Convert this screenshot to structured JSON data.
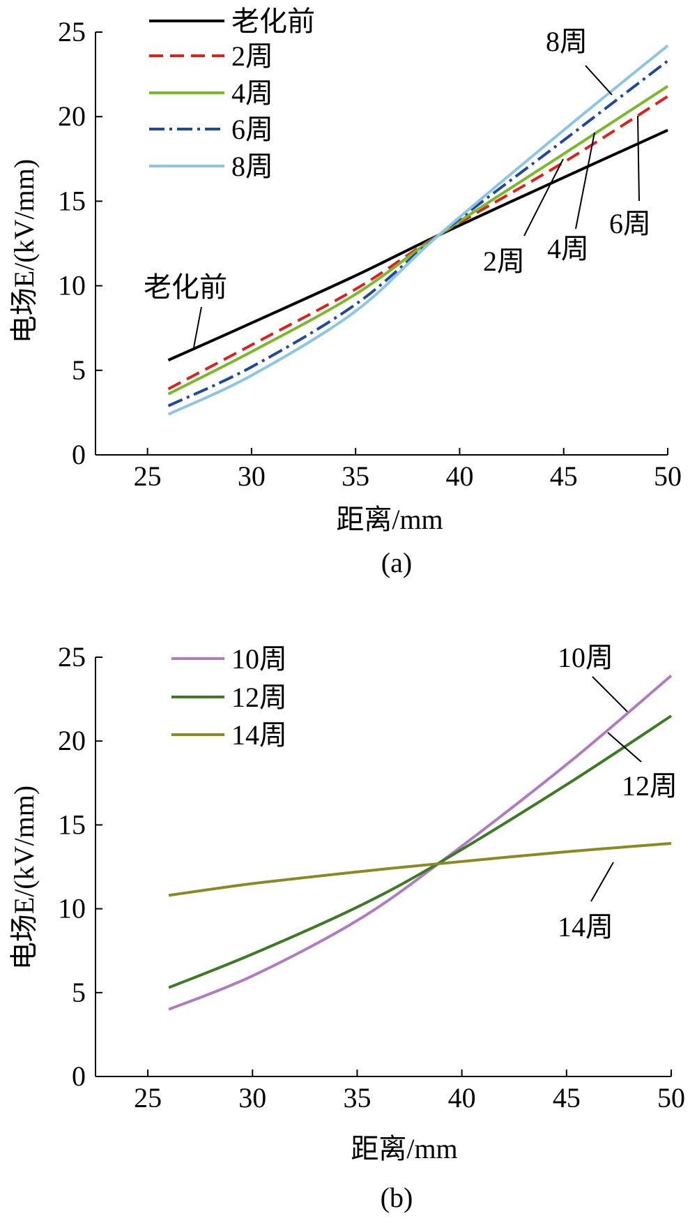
{
  "chart_data": [
    {
      "type": "line",
      "title": "",
      "panel_label": "(a)",
      "xlabel": "距离/mm",
      "ylabel": "电场E/(kV/mm)",
      "xlim": [
        22.5,
        50
      ],
      "ylim": [
        0,
        25
      ],
      "xticks": [
        25,
        30,
        35,
        40,
        45,
        50
      ],
      "yticks": [
        0,
        5,
        10,
        15,
        20,
        25
      ],
      "grid": false,
      "legend_position": "top-left",
      "series": [
        {
          "name": "老化前",
          "color": "#000000",
          "dash": "solid",
          "x": [
            26,
            30,
            35,
            39,
            45,
            50
          ],
          "y": [
            5.6,
            7.8,
            10.6,
            13.0,
            16.4,
            19.2
          ]
        },
        {
          "name": "2周",
          "color": "#e0201c",
          "dash": "dashed",
          "x": [
            26,
            30,
            35,
            39,
            45,
            50
          ],
          "y": [
            3.9,
            6.5,
            9.8,
            13.0,
            17.3,
            21.2
          ]
        },
        {
          "name": "4周",
          "color": "#7ab929",
          "dash": "solid",
          "x": [
            26,
            30,
            35,
            39,
            45,
            50
          ],
          "y": [
            3.6,
            6.1,
            9.5,
            13.0,
            17.8,
            21.8
          ]
        },
        {
          "name": "6周",
          "color": "#1f4a9c",
          "dash": "dashdot",
          "x": [
            26,
            30,
            35,
            39,
            45,
            50
          ],
          "y": [
            2.9,
            5.2,
            8.9,
            13.0,
            18.6,
            23.3
          ]
        },
        {
          "name": "8周",
          "color": "#8dc6e2",
          "dash": "solid",
          "x": [
            26,
            30,
            35,
            39,
            45,
            50
          ],
          "y": [
            2.4,
            4.7,
            8.5,
            13.0,
            19.2,
            24.2
          ]
        }
      ],
      "annotations": [
        "老化前",
        "2周",
        "4周",
        "6周",
        "8周"
      ]
    },
    {
      "type": "line",
      "title": "",
      "panel_label": "(b)",
      "xlabel": "距离/mm",
      "ylabel": "电场E/(kV/mm)",
      "xlim": [
        22.5,
        50
      ],
      "ylim": [
        0,
        25
      ],
      "xticks": [
        25,
        30,
        35,
        40,
        45,
        50
      ],
      "yticks": [
        0,
        5,
        10,
        15,
        20,
        25
      ],
      "grid": false,
      "legend_position": "top-left",
      "series": [
        {
          "name": "10周",
          "color": "#b07cc0",
          "dash": "solid",
          "x": [
            26,
            30,
            35,
            39,
            45,
            50
          ],
          "y": [
            4.0,
            6.0,
            9.3,
            12.8,
            18.6,
            23.9
          ]
        },
        {
          "name": "12周",
          "color": "#3c7a23",
          "dash": "solid",
          "x": [
            26,
            30,
            35,
            39,
            45,
            50
          ],
          "y": [
            5.3,
            7.3,
            10.1,
            12.8,
            17.4,
            21.5
          ]
        },
        {
          "name": "14周",
          "color": "#8a8a22",
          "dash": "solid",
          "x": [
            26,
            30,
            35,
            39,
            45,
            50
          ],
          "y": [
            10.8,
            11.5,
            12.2,
            12.7,
            13.4,
            13.9
          ]
        }
      ],
      "annotations": [
        "10周",
        "12周",
        "14周"
      ]
    }
  ]
}
